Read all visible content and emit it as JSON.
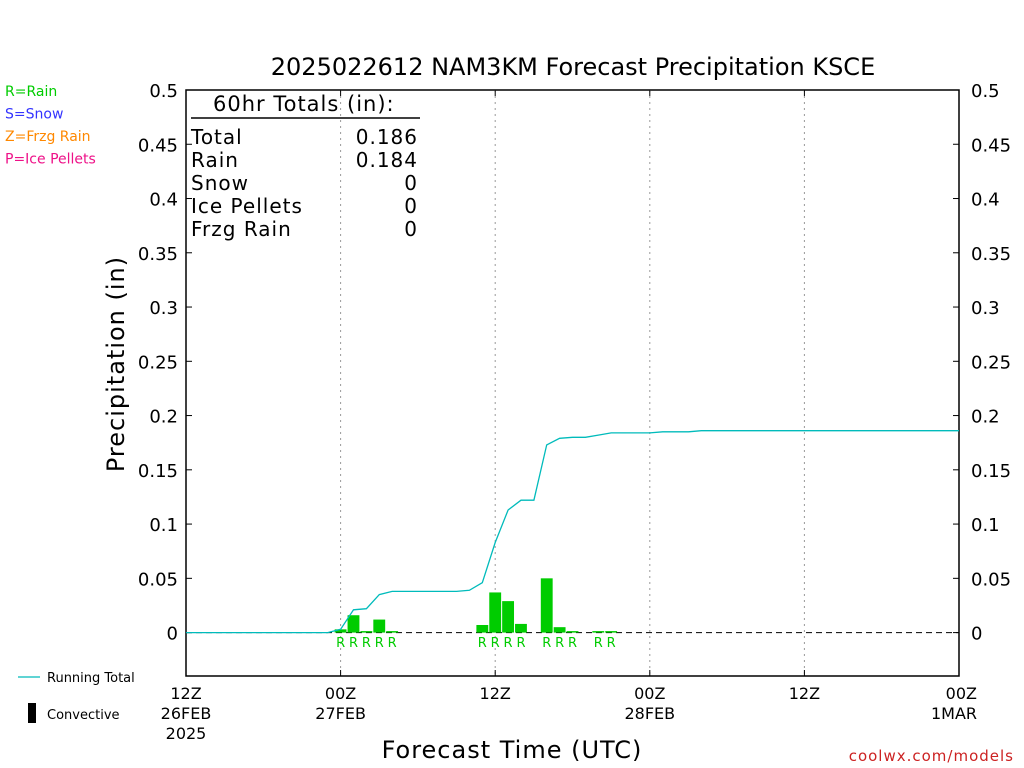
{
  "title": "2025022612 NAM3KM Forecast Precipitation KSCE",
  "legend_ptype": [
    {
      "text": "R=Rain",
      "color": "#00cc00"
    },
    {
      "text": "S=Snow",
      "color": "#3333ff"
    },
    {
      "text": "Z=Frzg Rain",
      "color": "#ff8800"
    },
    {
      "text": "P=Ice Pellets",
      "color": "#ee1188"
    }
  ],
  "legend_series": {
    "running_total": "Running Total",
    "convective": "Convective"
  },
  "totals": {
    "header": "60hr Totals (in):",
    "rows": [
      {
        "label": "Total",
        "value": "0.186"
      },
      {
        "label": "Rain",
        "value": "0.184"
      },
      {
        "label": "Snow",
        "value": "0"
      },
      {
        "label": "Ice Pellets",
        "value": "0"
      },
      {
        "label": "Frzg Rain",
        "value": "0"
      }
    ]
  },
  "watermark": "coolwx.com/models",
  "colors": {
    "bar": "#00cc00",
    "line": "#00bbbb",
    "rain_label": "#00cc00",
    "watermark": "#cc2222"
  },
  "chart_data": {
    "type": "bar",
    "title": "2025022612 NAM3KM Forecast Precipitation KSCE",
    "xlabel": "Forecast Time (UTC)",
    "ylabel": "Precipitation (in)",
    "ylim": [
      -0.04,
      0.5
    ],
    "yticks": [
      "0.5",
      "0.45",
      "0.4",
      "0.35",
      "0.3",
      "0.25",
      "0.2",
      "0.15",
      "0.1",
      "0.05",
      "0"
    ],
    "ytick_values": [
      0.5,
      0.45,
      0.4,
      0.35,
      0.3,
      0.25,
      0.2,
      0.15,
      0.1,
      0.05,
      0
    ],
    "xlim": [
      0,
      60
    ],
    "xticks": [
      {
        "x": 0,
        "lines": [
          "12Z",
          "26FEB",
          "2025"
        ]
      },
      {
        "x": 12,
        "lines": [
          "00Z",
          "27FEB"
        ]
      },
      {
        "x": 24,
        "lines": [
          "12Z"
        ]
      },
      {
        "x": 36,
        "lines": [
          "00Z",
          "28FEB"
        ]
      },
      {
        "x": 48,
        "lines": [
          "12Z"
        ]
      },
      {
        "x": 60,
        "lines": [
          "00Z",
          "1MAR"
        ]
      }
    ],
    "grid": "vertical-dotted",
    "series": [
      {
        "name": "Running Total",
        "kind": "line",
        "x": [
          0,
          1,
          2,
          3,
          4,
          5,
          6,
          7,
          8,
          9,
          10,
          11,
          12,
          13,
          14,
          15,
          16,
          17,
          18,
          19,
          20,
          21,
          22,
          23,
          24,
          25,
          26,
          27,
          28,
          29,
          30,
          31,
          32,
          33,
          34,
          35,
          36,
          37,
          38,
          39,
          40,
          42,
          44,
          46,
          48,
          50,
          52,
          54,
          56,
          58,
          60
        ],
        "values": [
          0,
          0,
          0,
          0,
          0,
          0,
          0,
          0,
          0,
          0,
          0,
          0,
          0.003,
          0.021,
          0.022,
          0.035,
          0.038,
          0.038,
          0.038,
          0.038,
          0.038,
          0.038,
          0.039,
          0.046,
          0.083,
          0.113,
          0.122,
          0.122,
          0.173,
          0.179,
          0.18,
          0.18,
          0.182,
          0.184,
          0.184,
          0.184,
          0.184,
          0.185,
          0.185,
          0.185,
          0.186,
          0.186,
          0.186,
          0.186,
          0.186,
          0.186,
          0.186,
          0.186,
          0.186,
          0.186,
          0.186
        ]
      },
      {
        "name": "Rain",
        "kind": "bar",
        "x": [
          12,
          13,
          14,
          15,
          16,
          17,
          18,
          19,
          20,
          21,
          22,
          23,
          24,
          25,
          26,
          27,
          28,
          29,
          30,
          31,
          32,
          33,
          34
        ],
        "values": [
          0.003,
          0.016,
          0.001,
          0.012,
          0.001,
          0,
          0,
          0,
          0,
          0,
          0,
          0.007,
          0.037,
          0.029,
          0.008,
          0,
          0.05,
          0.005,
          0.001,
          0,
          0.001,
          0.001,
          0
        ]
      }
    ],
    "ptype_labels": [
      {
        "x": 12,
        "text": "R"
      },
      {
        "x": 13,
        "text": "R"
      },
      {
        "x": 14,
        "text": "R"
      },
      {
        "x": 15,
        "text": "R"
      },
      {
        "x": 16,
        "text": "R"
      },
      {
        "x": 23,
        "text": "R"
      },
      {
        "x": 24,
        "text": "R"
      },
      {
        "x": 25,
        "text": "R"
      },
      {
        "x": 26,
        "text": "R"
      },
      {
        "x": 28,
        "text": "R"
      },
      {
        "x": 29,
        "text": "R"
      },
      {
        "x": 30,
        "text": "R"
      },
      {
        "x": 32,
        "text": "R"
      },
      {
        "x": 33,
        "text": "R"
      }
    ]
  }
}
